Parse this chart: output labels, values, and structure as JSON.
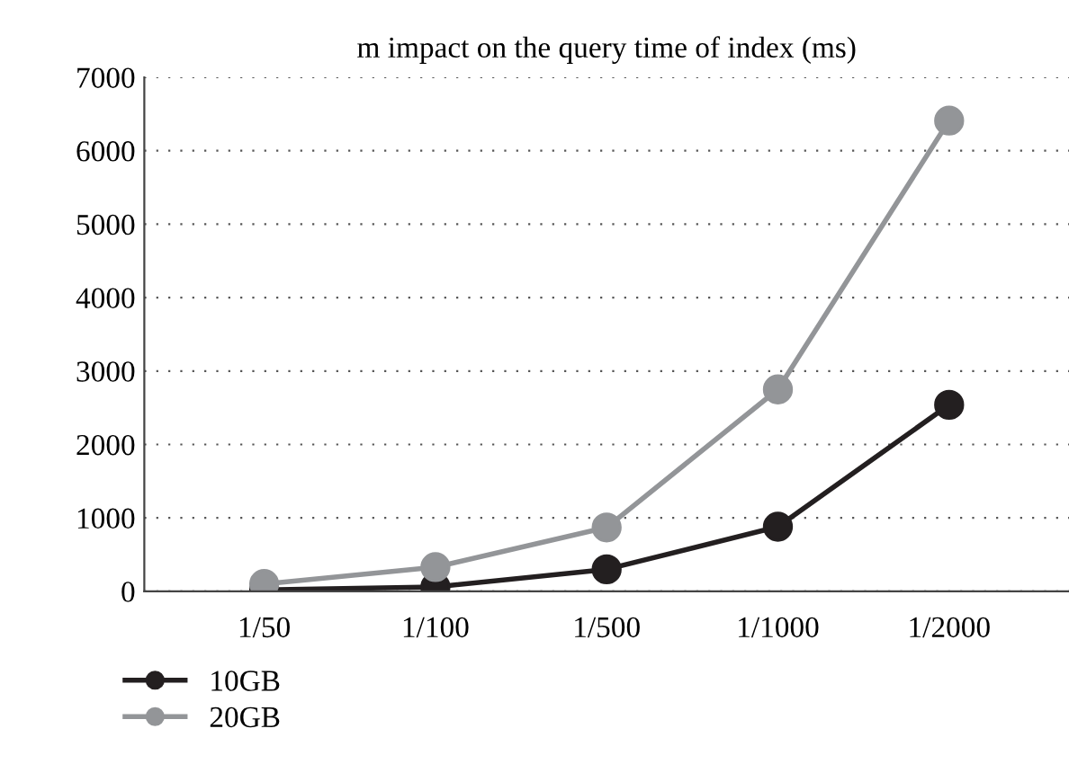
{
  "chart_data": {
    "type": "line",
    "title": "m impact on the query time of index (ms)",
    "categories": [
      "1/50",
      "1/100",
      "1/500",
      "1/1000",
      "1/2000"
    ],
    "series": [
      {
        "name": "10GB",
        "color": "#231f20",
        "values": [
          20,
          60,
          300,
          880,
          2540
        ]
      },
      {
        "name": "20GB",
        "color": "#939598",
        "values": [
          100,
          330,
          870,
          2750,
          6410
        ]
      }
    ],
    "ylim": [
      0,
      7000
    ],
    "yticks": [
      0,
      1000,
      2000,
      3000,
      4000,
      5000,
      6000,
      7000
    ],
    "grid": "y",
    "legend": "bottom left",
    "marker": "circle",
    "line_style": "solid"
  }
}
